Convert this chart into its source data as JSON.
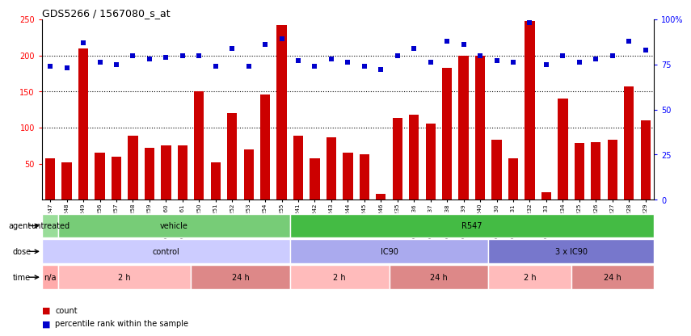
{
  "title": "GDS5266 / 1567080_s_at",
  "samples": [
    "GSM386247",
    "GSM386248",
    "GSM386249",
    "GSM386256",
    "GSM386257",
    "GSM386258",
    "GSM386259",
    "GSM386260",
    "GSM386261",
    "GSM386250",
    "GSM386251",
    "GSM386252",
    "GSM386253",
    "GSM386254",
    "GSM386255",
    "GSM386241",
    "GSM386242",
    "GSM386243",
    "GSM386244",
    "GSM386245",
    "GSM386246",
    "GSM386235",
    "GSM386236",
    "GSM386237",
    "GSM386238",
    "GSM386239",
    "GSM386240",
    "GSM386230",
    "GSM386231",
    "GSM386232",
    "GSM386233",
    "GSM386234",
    "GSM386225",
    "GSM386226",
    "GSM386227",
    "GSM386228",
    "GSM386229"
  ],
  "counts": [
    57,
    52,
    209,
    65,
    60,
    89,
    72,
    75,
    75,
    150,
    52,
    120,
    70,
    146,
    242,
    89,
    57,
    86,
    65,
    63,
    8,
    113,
    118,
    105,
    183,
    199,
    200,
    83,
    58,
    248,
    10,
    140,
    79,
    80,
    83,
    157,
    110
  ],
  "pct_rank": [
    74,
    73,
    87,
    76,
    75,
    80,
    78,
    79,
    80,
    80,
    74,
    84,
    74,
    86,
    89,
    77,
    74,
    78,
    76,
    74,
    72,
    80,
    84,
    76,
    88,
    86,
    80,
    77,
    76,
    98,
    75,
    80,
    76,
    78,
    80,
    88,
    83
  ],
  "bar_color": "#cc0000",
  "dot_color": "#0000cc",
  "ylim_left": [
    0,
    250
  ],
  "ylim_right": [
    0,
    100
  ],
  "yticks_left": [
    50,
    100,
    150,
    200,
    250
  ],
  "yticks_right": [
    0,
    25,
    50,
    75,
    100
  ],
  "grid_lines": [
    100,
    150,
    200
  ],
  "agent_segments": [
    {
      "text": "untreated",
      "start": 0,
      "end": 1,
      "color": "#99dd99"
    },
    {
      "text": "vehicle",
      "start": 1,
      "end": 15,
      "color": "#77cc77"
    },
    {
      "text": "R547",
      "start": 15,
      "end": 37,
      "color": "#44bb44"
    }
  ],
  "dose_segments": [
    {
      "text": "control",
      "start": 0,
      "end": 15,
      "color": "#ccccff"
    },
    {
      "text": "IC90",
      "start": 15,
      "end": 27,
      "color": "#aaaaee"
    },
    {
      "text": "3 x IC90",
      "start": 27,
      "end": 37,
      "color": "#7777cc"
    }
  ],
  "time_segments": [
    {
      "text": "n/a",
      "start": 0,
      "end": 1,
      "color": "#ffaaaa"
    },
    {
      "text": "2 h",
      "start": 1,
      "end": 9,
      "color": "#ffbbbb"
    },
    {
      "text": "24 h",
      "start": 9,
      "end": 15,
      "color": "#dd8888"
    },
    {
      "text": "2 h",
      "start": 15,
      "end": 21,
      "color": "#ffbbbb"
    },
    {
      "text": "24 h",
      "start": 21,
      "end": 27,
      "color": "#dd8888"
    },
    {
      "text": "2 h",
      "start": 27,
      "end": 32,
      "color": "#ffbbbb"
    },
    {
      "text": "24 h",
      "start": 32,
      "end": 37,
      "color": "#dd8888"
    }
  ],
  "legend_items": [
    {
      "symbol": "square",
      "color": "#cc0000",
      "label": "count"
    },
    {
      "symbol": "square",
      "color": "#0000cc",
      "label": "percentile rank within the sample"
    }
  ]
}
